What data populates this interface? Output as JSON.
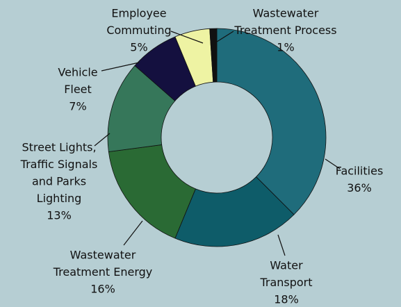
{
  "chart_data": {
    "type": "donut",
    "categories": [
      [
        "Facilities"
      ],
      [
        "Water",
        "Transport"
      ],
      [
        "Wastewater",
        "Treatment Energy"
      ],
      [
        "Street Lights,",
        "Traffic Signals",
        "and Parks",
        "Lighting"
      ],
      [
        "Vehicle",
        "Fleet"
      ],
      [
        "Employee",
        "Commuting"
      ],
      [
        "Wastewater",
        "Treatment Process"
      ]
    ],
    "values": [
      36,
      18,
      16,
      13,
      7,
      5,
      1
    ],
    "value_labels": [
      "36%",
      "18%",
      "16%",
      "13%",
      "7%",
      "5%",
      "1%"
    ],
    "colors": [
      "#1f6c7b",
      "#0e5c69",
      "#2a6a34",
      "#36775a",
      "#14103f",
      "#eef3a3",
      "#111111"
    ]
  }
}
